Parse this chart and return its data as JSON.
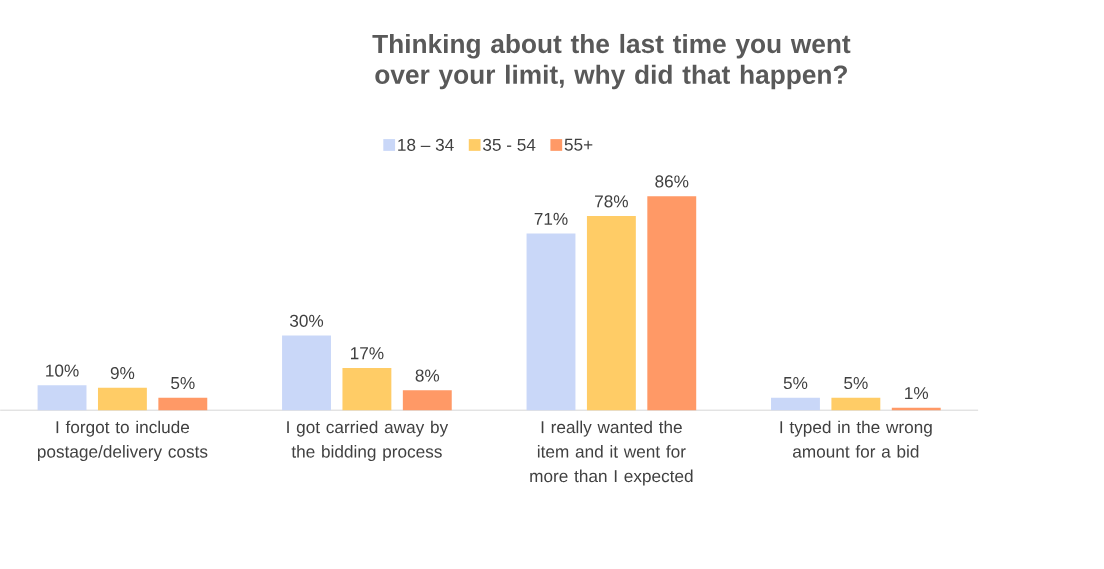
{
  "chart_data": {
    "type": "bar",
    "title": "Thinking about the last time you went over your limit, why did that happen?",
    "categories": [
      "I forgot to include postage/delivery costs",
      "I got carried away by the bidding process",
      "I really wanted the item and it went for more than I expected",
      "I typed in the wrong amount for a bid"
    ],
    "series": [
      {
        "name": "18 – 34",
        "color": "#c9d7f8",
        "values": [
          10,
          30,
          71,
          5
        ],
        "value_labels": [
          "10%",
          "30%",
          "71%",
          "5%"
        ]
      },
      {
        "name": "35 - 54",
        "color": "#ffcc66",
        "values": [
          9,
          17,
          78,
          5
        ],
        "value_labels": [
          "9%",
          "17%",
          "78%",
          "5%"
        ]
      },
      {
        "name": "55+",
        "color": "#ff9966",
        "values": [
          5,
          8,
          86,
          1
        ],
        "value_labels": [
          "5%",
          "8%",
          "86%",
          "1%"
        ]
      }
    ],
    "legend": "top"
  }
}
